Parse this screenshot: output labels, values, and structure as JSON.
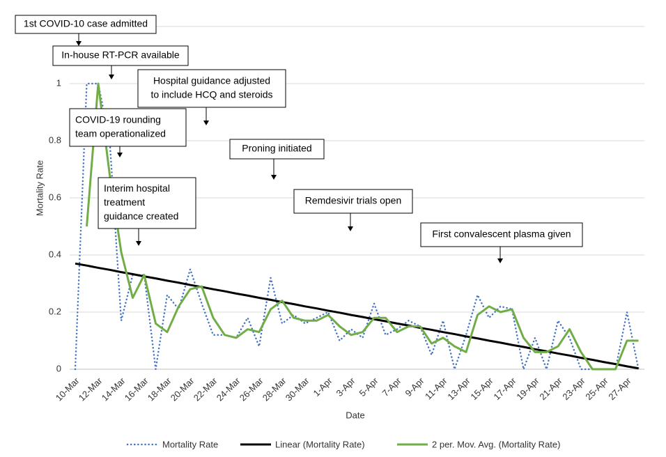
{
  "chart_data": {
    "type": "line",
    "xlabel": "Date",
    "ylabel": "Mortality Rate",
    "categories": [
      "10-Mar",
      null,
      "12-Mar",
      null,
      "14-Mar",
      null,
      "16-Mar",
      null,
      "18-Mar",
      null,
      "20-Mar",
      null,
      "22-Mar",
      null,
      "24-Mar",
      null,
      "26-Mar",
      null,
      "28-Mar",
      null,
      "30-Mar",
      null,
      "1-Apr",
      null,
      "3-Apr",
      null,
      "5-Apr",
      null,
      "7-Apr",
      null,
      "9-Apr",
      null,
      "11-Apr",
      null,
      "13-Apr",
      null,
      "15-Apr",
      null,
      "17-Apr",
      null,
      "19-Apr",
      null,
      "21-Apr",
      null,
      "23-Apr",
      null,
      "25-Apr",
      null,
      "27-Apr",
      null
    ],
    "series": [
      {
        "name": "Mortality Rate",
        "color": "#4472c4",
        "style": "dotted",
        "values": [
          0,
          1,
          1,
          0.8,
          0.17,
          0.33,
          0.33,
          0,
          0.26,
          0.21,
          0.35,
          0.23,
          0.12,
          0.12,
          0.11,
          0.18,
          0.08,
          0.32,
          0.16,
          0.19,
          0.16,
          0.18,
          0.2,
          0.1,
          0.14,
          0.11,
          0.23,
          0.12,
          0.14,
          0.17,
          0.15,
          0.05,
          0.17,
          0,
          0.12,
          0.26,
          0.18,
          0.22,
          0.21,
          0,
          0.11,
          0,
          0.17,
          0.11,
          0,
          0,
          0,
          0,
          0.2,
          0
        ]
      },
      {
        "name": "Linear (Mortality Rate)",
        "color": "#000000",
        "style": "solid",
        "values": [
          0.37,
          0.363,
          0.355,
          0.348,
          0.34,
          0.333,
          0.325,
          0.318,
          0.31,
          0.303,
          0.295,
          0.288,
          0.28,
          0.273,
          0.265,
          0.258,
          0.25,
          0.243,
          0.235,
          0.228,
          0.22,
          0.213,
          0.205,
          0.198,
          0.19,
          0.183,
          0.175,
          0.168,
          0.16,
          0.153,
          0.145,
          0.138,
          0.13,
          0.123,
          0.115,
          0.108,
          0.1,
          0.093,
          0.085,
          0.078,
          0.07,
          0.063,
          0.055,
          0.048,
          0.04,
          0.033,
          0.025,
          0.018,
          0.01,
          0.003
        ]
      },
      {
        "name": "2 per. Mov. Avg. (Mortality Rate)",
        "color": "#70ad47",
        "style": "solid",
        "values": [
          null,
          0.5,
          1.0,
          0.68,
          0.41,
          0.25,
          0.33,
          0.16,
          0.13,
          0.22,
          0.28,
          0.29,
          0.18,
          0.12,
          0.11,
          0.14,
          0.13,
          0.21,
          0.24,
          0.18,
          0.17,
          0.17,
          0.19,
          0.15,
          0.12,
          0.13,
          0.18,
          0.18,
          0.13,
          0.15,
          0.15,
          0.09,
          0.11,
          0.08,
          0.06,
          0.19,
          0.22,
          0.2,
          0.21,
          0.11,
          0.06,
          0.06,
          0.08,
          0.14,
          0.06,
          0,
          0,
          0,
          0.1,
          0.1
        ]
      }
    ],
    "ylim": [
      0,
      1.2
    ],
    "yticks": [
      0,
      0.2,
      0.4,
      0.6,
      0.8,
      1
    ],
    "grid": true,
    "legend": "bottom",
    "annotations": [
      {
        "lines": [
          "1st COVID-10 case admitted"
        ]
      },
      {
        "lines": [
          "In-house RT-PCR available"
        ]
      },
      {
        "lines": [
          "Hospital guidance adjusted",
          "to include HCQ and steroids"
        ]
      },
      {
        "lines": [
          "COVID-19 rounding",
          "team operationalized"
        ]
      },
      {
        "lines": [
          "Proning initiated"
        ]
      },
      {
        "lines": [
          "Remdesivir trials open"
        ]
      },
      {
        "lines": [
          "First convalescent plasma given"
        ]
      },
      {
        "lines": [
          "Interim hospital",
          "treatment",
          "guidance created"
        ]
      }
    ]
  }
}
